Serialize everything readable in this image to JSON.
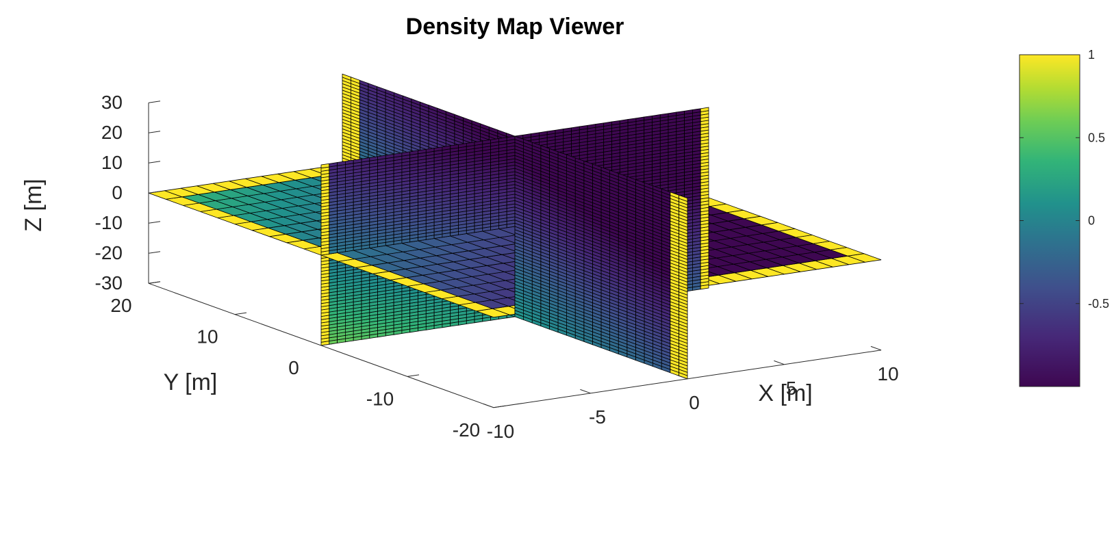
{
  "chart_data": {
    "type": "heatmap",
    "subtype": "3d-orthogonal-slices",
    "title": "Density Map Viewer",
    "xlabel": "X [m]",
    "ylabel": "Y [m]",
    "zlabel": "Z [m]",
    "xlim": [
      -10,
      10
    ],
    "ylim": [
      -20,
      20
    ],
    "zlim": [
      -30,
      30
    ],
    "x_ticks": [
      {
        "value": -10,
        "label": "-10"
      },
      {
        "value": -5,
        "label": "-5"
      },
      {
        "value": 0,
        "label": "0"
      },
      {
        "value": 5,
        "label": "5"
      },
      {
        "value": 10,
        "label": "10"
      }
    ],
    "y_ticks": [
      {
        "value": -20,
        "label": "-20"
      },
      {
        "value": -10,
        "label": "-10"
      },
      {
        "value": 0,
        "label": "0"
      },
      {
        "value": 10,
        "label": "10"
      },
      {
        "value": 20,
        "label": "20"
      }
    ],
    "z_ticks": [
      {
        "value": -30,
        "label": "-30"
      },
      {
        "value": -20,
        "label": "-20"
      },
      {
        "value": -10,
        "label": "-10"
      },
      {
        "value": 0,
        "label": "0"
      },
      {
        "value": 10,
        "label": "10"
      },
      {
        "value": 20,
        "label": "20"
      },
      {
        "value": 30,
        "label": "30"
      }
    ],
    "slices": [
      {
        "name": "z-slice",
        "plane": "z",
        "at": 0
      },
      {
        "name": "x-slice",
        "plane": "x",
        "at": 0
      },
      {
        "name": "y-slice",
        "plane": "y",
        "at": 0
      }
    ],
    "colorbar": {
      "colormap": "parula",
      "range": [
        -1,
        1
      ],
      "ticks": [
        {
          "value": 1,
          "label": "1"
        },
        {
          "value": 0.5,
          "label": "0.5"
        },
        {
          "value": 0,
          "label": "0"
        },
        {
          "value": -0.5,
          "label": "-0.5"
        }
      ],
      "location": "right"
    },
    "grid": false,
    "colors": {
      "low": "#3e0751",
      "mid": "#21918c",
      "high": "#fde725",
      "edge": "#000000"
    }
  }
}
